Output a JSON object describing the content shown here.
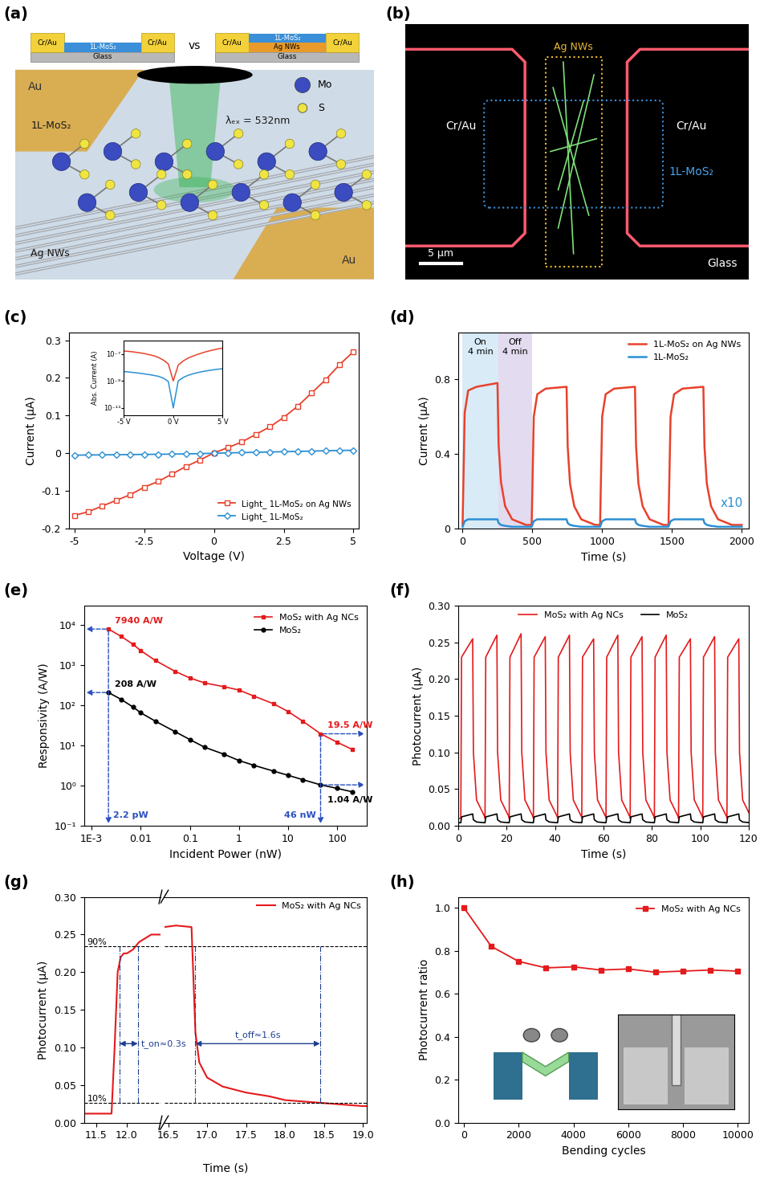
{
  "panel_a": {
    "label": "(a)",
    "devices": [
      {
        "electrodes": [
          "Cr/Au",
          "Cr/Au"
        ],
        "layers": [
          "1L-MoS₂"
        ],
        "substrate": "Glass"
      },
      {
        "electrodes": [
          "Cr/Au",
          "Cr/Au"
        ],
        "layers": [
          "1L-MoS₂",
          "Ag NWs"
        ],
        "substrate": "Glass"
      }
    ],
    "separator": "vs",
    "illustration": {
      "electrodes": [
        "Au",
        "Au"
      ],
      "laser": "λₑₓ = 532nm",
      "flake": "1L-MoS₂",
      "wires": "Ag NWs",
      "atoms": [
        {
          "label": "Mo",
          "color": "#3b4cc0"
        },
        {
          "label": "S",
          "color": "#f0e442"
        }
      ]
    }
  },
  "panel_b": {
    "label": "(b)",
    "wires": "Ag NWs",
    "electrodes": [
      "Cr/Au",
      "Cr/Au"
    ],
    "flake": "1L-MoS₂",
    "substrate": "Glass",
    "scale_bar": "5 μm"
  },
  "chart_data": [
    {
      "panel": "(c)",
      "type": "line",
      "x_label": "Voltage (V)",
      "y_label": "Current (μA)",
      "x": [
        -5,
        -4.5,
        -4,
        -3.5,
        -3,
        -2.5,
        -2,
        -1.5,
        -1,
        -0.5,
        0,
        0.5,
        1,
        1.5,
        2,
        2.5,
        3,
        3.5,
        4,
        4.5,
        5
      ],
      "series": [
        {
          "name": "Light_ 1L-MoS₂ on Ag NWs",
          "color": "#e8412c",
          "marker": "square",
          "line_style": "solid",
          "values": [
            -0.165,
            -0.155,
            -0.14,
            -0.125,
            -0.11,
            -0.09,
            -0.075,
            -0.055,
            -0.035,
            -0.018,
            0.001,
            0.015,
            0.03,
            0.05,
            0.07,
            0.095,
            0.125,
            0.16,
            0.195,
            0.235,
            0.27
          ]
        },
        {
          "name": "Light_ 1L-MoS₂",
          "color": "#2b8fd4",
          "marker": "diamond",
          "line_style": "solid",
          "values": [
            -0.005,
            -0.0046,
            -0.0042,
            -0.0038,
            -0.0034,
            -0.003,
            -0.0026,
            -0.0022,
            -0.0016,
            -0.0009,
            0,
            0.001,
            0.0018,
            0.0026,
            0.0034,
            0.0042,
            0.005,
            0.0058,
            0.0066,
            0.0074,
            0.008
          ]
        }
      ],
      "xlim": [
        -5.2,
        5.2
      ],
      "ylim": [
        -0.2,
        0.32
      ],
      "xticks": [
        -5,
        -2.5,
        0,
        2.5,
        5
      ],
      "yticks": [
        -0.2,
        -0.1,
        0,
        0.1,
        0.2,
        0.3
      ],
      "legend": "lower right"
    },
    {
      "type": "line",
      "y_label": "Abs. Current (A)",
      "log": "y",
      "x": [
        -5,
        -4.5,
        -4,
        -3.5,
        -3,
        -2.5,
        -2,
        -1.5,
        -1,
        -0.5,
        0,
        0.5,
        1,
        1.5,
        2,
        2.5,
        3,
        3.5,
        4,
        4.5,
        5
      ],
      "series": [
        {
          "color": "#e8412c",
          "line_style": "solid",
          "values": [
            1.65e-07,
            1.55e-07,
            1.4e-07,
            1.25e-07,
            1.1e-07,
            9e-08,
            7.5e-08,
            5.5e-08,
            3.5e-08,
            1.8e-08,
            1e-09,
            1.5e-08,
            3e-08,
            5e-08,
            7e-08,
            9.5e-08,
            1.25e-07,
            1.6e-07,
            1.95e-07,
            2.35e-07,
            2.7e-07
          ]
        },
        {
          "color": "#2b8fd4",
          "line_style": "solid",
          "values": [
            5e-09,
            4.6e-09,
            4.2e-09,
            3.8e-09,
            3.4e-09,
            3e-09,
            2.6e-09,
            2.2e-09,
            1.6e-09,
            9e-10,
            1e-11,
            1e-09,
            1.8e-09,
            2.6e-09,
            3.4e-09,
            4.2e-09,
            5e-09,
            5.8e-09,
            6.6e-09,
            7.4e-09,
            8e-09
          ]
        }
      ],
      "xlim": [
        -5,
        5
      ],
      "ylim": [
        3e-12,
        1e-06
      ],
      "xticks": [
        {
          "value": -5,
          "label": "-5 V"
        },
        {
          "value": 0,
          "label": "0 V"
        },
        {
          "value": 5,
          "label": "5 V"
        }
      ],
      "yticks": [
        {
          "value": 1e-11,
          "label": "10⁻¹¹"
        },
        {
          "value": 1e-09,
          "label": "10⁻⁹"
        },
        {
          "value": 1e-07,
          "label": "10⁻⁷"
        }
      ]
    },
    {
      "panel": "(d)",
      "type": "line",
      "x_label": "Time (s)",
      "y_label": "Current (μA)",
      "x": [
        0,
        15,
        40,
        100,
        250,
        258,
        275,
        305,
        355,
        455,
        495,
        510,
        535,
        595,
        745,
        753,
        770,
        800,
        850,
        950,
        985,
        1000,
        1025,
        1085,
        1235,
        1243,
        1260,
        1290,
        1340,
        1440,
        1475,
        1490,
        1515,
        1575,
        1725,
        1733,
        1750,
        1780,
        1830,
        1930,
        2000
      ],
      "series": [
        {
          "name": "1L-MoS₂ on Ag NWs",
          "color": "#e8412c",
          "line_style": "solid",
          "values": [
            0.02,
            0.62,
            0.74,
            0.76,
            0.78,
            0.45,
            0.25,
            0.12,
            0.05,
            0.02,
            0.02,
            0.6,
            0.72,
            0.75,
            0.76,
            0.44,
            0.24,
            0.12,
            0.05,
            0.02,
            0.02,
            0.6,
            0.72,
            0.75,
            0.76,
            0.44,
            0.24,
            0.12,
            0.05,
            0.02,
            0.02,
            0.6,
            0.72,
            0.75,
            0.76,
            0.44,
            0.24,
            0.12,
            0.05,
            0.02,
            0.02
          ]
        },
        {
          "name": "1L-MoS₂",
          "color": "#2b8fd4",
          "line_style": "solid",
          "values": [
            0.01,
            0.04,
            0.05,
            0.05,
            0.05,
            0.03,
            0.02,
            0.015,
            0.01,
            0.01,
            0.01,
            0.04,
            0.05,
            0.05,
            0.05,
            0.03,
            0.02,
            0.015,
            0.01,
            0.01,
            0.01,
            0.04,
            0.05,
            0.05,
            0.05,
            0.03,
            0.02,
            0.015,
            0.01,
            0.01,
            0.01,
            0.04,
            0.05,
            0.05,
            0.05,
            0.03,
            0.02,
            0.015,
            0.01,
            0.01,
            0.01
          ]
        }
      ],
      "spans": [
        {
          "label": "On\n4 min",
          "start": 0,
          "end": 255,
          "color": "#cfe6f5"
        },
        {
          "label": "Off\n4 min",
          "start": 255,
          "end": 495,
          "color": "#ddd3ec"
        }
      ],
      "annotations": [
        {
          "text": "x10",
          "color": "#2b8fd4"
        }
      ],
      "xlim": [
        -30,
        2050
      ],
      "ylim": [
        0,
        1.05
      ],
      "xticks": [
        0,
        500,
        1000,
        1500,
        2000
      ],
      "yticks": [
        0,
        0.4,
        0.8
      ],
      "legend": "upper right"
    },
    {
      "panel": "(e)",
      "type": "line",
      "x_label": "Incident Power (nW)",
      "y_label": "Responsivity (A/W)",
      "log": true,
      "x": [
        0.0022,
        0.004,
        0.007,
        0.01,
        0.02,
        0.05,
        0.1,
        0.2,
        0.5,
        1,
        2,
        5,
        10,
        20,
        46,
        100,
        200
      ],
      "series": [
        {
          "name": "MoS₂ with Ag NCs",
          "color": "#e41a1c",
          "marker": "square",
          "line_style": "solid",
          "values": [
            7940,
            5200,
            3300,
            2300,
            1300,
            700,
            480,
            360,
            290,
            240,
            170,
            110,
            70,
            40,
            19.5,
            12,
            8
          ]
        },
        {
          "name": "MoS₂",
          "color": "#000000",
          "marker": "circle",
          "line_style": "solid",
          "values": [
            208,
            140,
            90,
            65,
            40,
            22,
            14,
            9,
            6,
            4.2,
            3.2,
            2.3,
            1.8,
            1.4,
            1.04,
            0.85,
            0.7
          ]
        }
      ],
      "markers": [
        {
          "x": 0.0022,
          "x_label": "2.2 pW",
          "points": [
            {
              "value": 7940,
              "label": "7940 A/W"
            },
            {
              "value": 208,
              "label": "208 A/W"
            }
          ]
        },
        {
          "x": 46,
          "x_label": "46 nW",
          "points": [
            {
              "value": 19.5,
              "label": "19.5 A/W"
            },
            {
              "value": 1.04,
              "label": "1.04 A/W"
            }
          ]
        }
      ],
      "xlim": [
        0.0007,
        400
      ],
      "ylim": [
        0.1,
        30000
      ],
      "xticks": [
        {
          "value": 0.001,
          "label": "1E-3"
        },
        0.01,
        0.1,
        1,
        10,
        100
      ],
      "yticks": [
        {
          "value": 0.1,
          "label": "10⁻¹"
        },
        {
          "value": 1,
          "label": "10⁰"
        },
        {
          "value": 10,
          "label": "10¹"
        },
        {
          "value": 100,
          "label": "10²"
        },
        {
          "value": 1000,
          "label": "10³"
        },
        {
          "value": 10000,
          "label": "10⁴"
        }
      ],
      "legend": "upper right"
    },
    {
      "panel": "(f)",
      "type": "line",
      "x_label": "Time (s)",
      "y_label": "Photocurrent (μA)",
      "x": [
        0,
        1,
        1.3,
        5.9,
        6.2,
        7.5,
        10.9,
        11,
        11.3,
        15.9,
        16.2,
        17.5,
        20.9,
        21,
        21.3,
        25.9,
        26.2,
        27.5,
        30.9,
        31,
        31.3,
        35.9,
        36.2,
        37.5,
        40.9,
        41,
        41.3,
        45.9,
        46.2,
        47.5,
        50.9,
        51,
        51.3,
        55.9,
        56.2,
        57.5,
        60.9,
        61,
        61.3,
        65.9,
        66.2,
        67.5,
        70.9,
        71,
        71.3,
        75.9,
        76.2,
        77.5,
        80.9,
        81,
        81.3,
        85.9,
        86.2,
        87.5,
        90.9,
        91,
        91.3,
        95.9,
        96.2,
        97.5,
        100.9,
        101,
        101.3,
        105.9,
        106.2,
        107.5,
        110.9,
        111,
        111.3,
        115.9,
        116.2,
        117.5,
        120.9
      ],
      "series": [
        {
          "name": "MoS₂ with Ag NCs",
          "color": "#e41a1c",
          "line_style": "solid",
          "values": [
            0.01,
            0.01,
            0.23,
            0.255,
            0.1,
            0.035,
            0.012,
            0.01,
            0.23,
            0.26,
            0.1,
            0.035,
            0.012,
            0.01,
            0.23,
            0.262,
            0.1,
            0.035,
            0.012,
            0.01,
            0.23,
            0.258,
            0.1,
            0.035,
            0.012,
            0.01,
            0.23,
            0.26,
            0.1,
            0.035,
            0.012,
            0.01,
            0.23,
            0.255,
            0.1,
            0.035,
            0.012,
            0.01,
            0.23,
            0.26,
            0.1,
            0.035,
            0.012,
            0.01,
            0.23,
            0.258,
            0.1,
            0.035,
            0.012,
            0.01,
            0.23,
            0.26,
            0.1,
            0.035,
            0.012,
            0.01,
            0.23,
            0.255,
            0.1,
            0.035,
            0.012,
            0.01,
            0.23,
            0.258,
            0.1,
            0.035,
            0.012,
            0.01,
            0.23,
            0.255,
            0.1,
            0.035,
            0.012
          ]
        },
        {
          "name": "MoS₂",
          "color": "#000000",
          "line_style": "solid",
          "values": [
            0.004,
            0.004,
            0.012,
            0.016,
            0.008,
            0.005,
            0.004,
            0.004,
            0.012,
            0.016,
            0.008,
            0.005,
            0.004,
            0.004,
            0.012,
            0.016,
            0.008,
            0.005,
            0.004,
            0.004,
            0.012,
            0.016,
            0.008,
            0.005,
            0.004,
            0.004,
            0.012,
            0.016,
            0.008,
            0.005,
            0.004,
            0.004,
            0.012,
            0.016,
            0.008,
            0.005,
            0.004,
            0.004,
            0.012,
            0.016,
            0.008,
            0.005,
            0.004,
            0.004,
            0.012,
            0.016,
            0.008,
            0.005,
            0.004,
            0.004,
            0.012,
            0.016,
            0.008,
            0.005,
            0.004,
            0.004,
            0.012,
            0.016,
            0.008,
            0.005,
            0.004,
            0.004,
            0.012,
            0.016,
            0.008,
            0.005,
            0.004,
            0.004,
            0.012,
            0.016,
            0.008,
            0.005,
            0.004
          ]
        }
      ],
      "xlim": [
        0,
        120
      ],
      "ylim": [
        0,
        0.3
      ],
      "xticks": [
        0,
        20,
        40,
        60,
        80,
        100,
        120
      ],
      "yticks": [
        {
          "value": 0,
          "label": "0.00"
        },
        0.05,
        {
          "value": 0.1,
          "label": "0.10"
        },
        0.15,
        {
          "value": 0.2,
          "label": "0.20"
        },
        0.25,
        {
          "value": 0.3,
          "label": "0.30"
        }
      ],
      "legend": "upper center"
    },
    {
      "panel": "(g)",
      "type": "line",
      "x_label": "Time (s)",
      "y_label": "Photocurrent (μA)",
      "x": [
        11.3,
        11.5,
        11.75,
        11.8,
        11.85,
        11.9,
        11.95,
        12.0,
        12.1,
        12.2,
        12.3,
        12.4,
        12.55,
        16.45,
        16.6,
        16.8,
        16.85,
        16.9,
        17.0,
        17.2,
        17.5,
        17.8,
        18.0,
        18.5,
        19.0,
        19.05
      ],
      "series": [
        {
          "name": "MoS₂ with Ag NCs",
          "color": "#e41a1c",
          "line_style": "solid",
          "values": [
            0.012,
            0.012,
            0.012,
            0.1,
            0.2,
            0.22,
            0.225,
            0.225,
            0.23,
            0.24,
            0.245,
            0.25,
            0.25,
            0.26,
            0.262,
            0.26,
            0.12,
            0.08,
            0.06,
            0.048,
            0.04,
            0.035,
            0.03,
            0.026,
            0.022,
            0.022
          ]
        }
      ],
      "x_segments": [
        {
          "xlim": [
            11.3,
            12.55
          ],
          "xticks": [
            11.5,
            {
              "value": 12,
              "label": "12.0"
            }
          ]
        },
        {
          "xlim": [
            16.45,
            19.05
          ],
          "xticks": [
            16.5,
            {
              "value": 17,
              "label": "17.0"
            },
            17.5,
            {
              "value": 18,
              "label": "18.0"
            },
            18.5,
            {
              "value": 19,
              "label": "19.0"
            }
          ]
        }
      ],
      "levels": [
        {
          "label": "90%",
          "value": 0.235
        },
        {
          "label": "10%",
          "value": 0.026
        }
      ],
      "spans": [
        {
          "label": "t_on≈0.3s",
          "start": 11.88,
          "end": 12.18
        },
        {
          "label": "t_off≈1.6s",
          "start": 16.85,
          "end": 18.45
        }
      ],
      "ylim": [
        0,
        0.3
      ],
      "yticks": [
        {
          "value": 0,
          "label": "0.00"
        },
        0.05,
        {
          "value": 0.1,
          "label": "0.10"
        },
        0.15,
        {
          "value": 0.2,
          "label": "0.20"
        },
        0.25,
        {
          "value": 0.3,
          "label": "0.30"
        }
      ],
      "legend": "upper right"
    },
    {
      "panel": "(h)",
      "type": "line",
      "x_label": "Bending cycles",
      "y_label": "Photocurrent ratio",
      "x": [
        0,
        1000,
        2000,
        3000,
        4000,
        5000,
        6000,
        7000,
        8000,
        9000,
        10000
      ],
      "series": [
        {
          "name": "MoS₂ with Ag NCs",
          "color": "#e41a1c",
          "marker": "square",
          "line_style": "solid",
          "values": [
            1.0,
            0.82,
            0.75,
            0.72,
            0.725,
            0.71,
            0.715,
            0.7,
            0.705,
            0.71,
            0.705
          ]
        }
      ],
      "xlim": [
        -200,
        10400
      ],
      "ylim": [
        0,
        1.05
      ],
      "xticks": [
        0,
        2000,
        4000,
        6000,
        8000,
        10000
      ],
      "yticks": [
        {
          "value": 0,
          "label": "0.0"
        },
        0.2,
        0.4,
        0.6,
        0.8,
        {
          "value": 1,
          "label": "1.0"
        }
      ],
      "legend": "upper right"
    }
  ]
}
